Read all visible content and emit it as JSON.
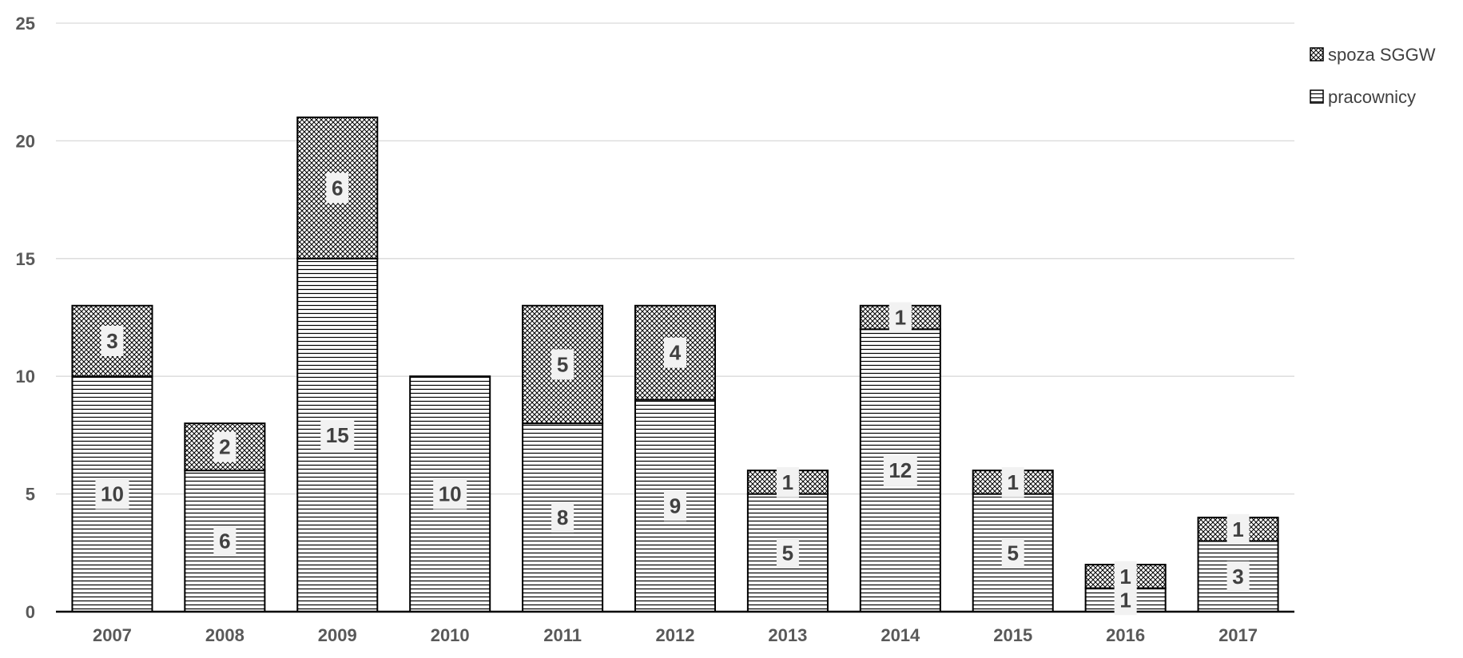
{
  "chart_data": {
    "type": "bar",
    "stacked": true,
    "categories": [
      "2007",
      "2008",
      "2009",
      "2010",
      "2011",
      "2012",
      "2013",
      "2014",
      "2015",
      "2016",
      "2017"
    ],
    "series": [
      {
        "name": "pracownicy",
        "values": [
          10,
          6,
          15,
          10,
          8,
          9,
          5,
          12,
          5,
          1,
          3
        ],
        "pattern": "horizontal-lines"
      },
      {
        "name": "spoza SGGW",
        "values": [
          3,
          2,
          6,
          0,
          5,
          4,
          1,
          1,
          1,
          1,
          1
        ],
        "pattern": "crosshatch"
      }
    ],
    "title": "",
    "xlabel": "",
    "ylabel": "",
    "ylim": [
      0,
      25
    ],
    "yticks": [
      "0",
      "5",
      "10",
      "15",
      "20",
      "25"
    ],
    "grid": true,
    "legend_position": "top-right",
    "legend": [
      "spoza SGGW",
      "pracownicy"
    ],
    "colors": {
      "bar_stroke": "#000000",
      "grid": "#d9d9d9",
      "axis": "#000000",
      "label_bg": "#f2f2f2"
    }
  }
}
